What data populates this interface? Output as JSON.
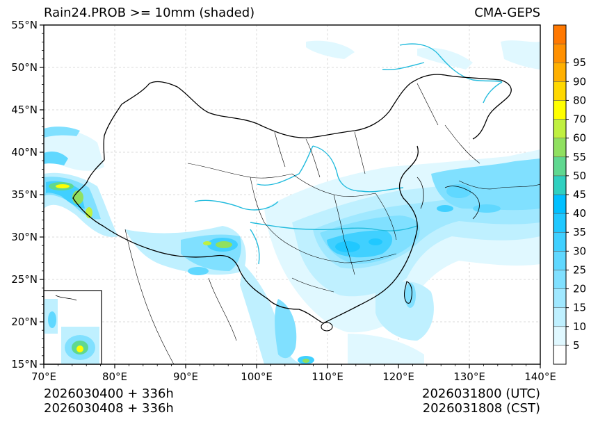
{
  "title_left": "Rain24.PROB >= 10mm (shaded)",
  "title_right": "CMA-GEPS",
  "footer": {
    "init_utc": "2026030400 + 336h",
    "init_cst": "2026030408 + 336h",
    "valid_utc": "2026031800 (UTC)",
    "valid_cst": "2026031808 (CST)"
  },
  "lat_labels": [
    "55°N",
    "50°N",
    "45°N",
    "40°N",
    "35°N",
    "30°N",
    "25°N",
    "20°N",
    "15°N"
  ],
  "lon_labels": [
    "70°E",
    "80°E",
    "90°E",
    "100°E",
    "110°E",
    "120°E",
    "130°E",
    "140°E"
  ],
  "colorbar": {
    "labels": [
      "5",
      "10",
      "15",
      "20",
      "25",
      "30",
      "35",
      "40",
      "45",
      "50",
      "55",
      "60",
      "70",
      "80",
      "90",
      "95"
    ],
    "colors": [
      "#ffffff",
      "#e0f8ff",
      "#bff0ff",
      "#a0e8ff",
      "#80e0ff",
      "#60d8ff",
      "#40d0ff",
      "#20c8ff",
      "#00c0ff",
      "#30d0c0",
      "#60d890",
      "#90e060",
      "#c0f040",
      "#ffff00",
      "#ffd800",
      "#ffb000",
      "#ff9000",
      "#ff7800"
    ]
  },
  "colors": {
    "coast": "#000000",
    "river": "#22bbdd",
    "grid": "#cccccc"
  }
}
